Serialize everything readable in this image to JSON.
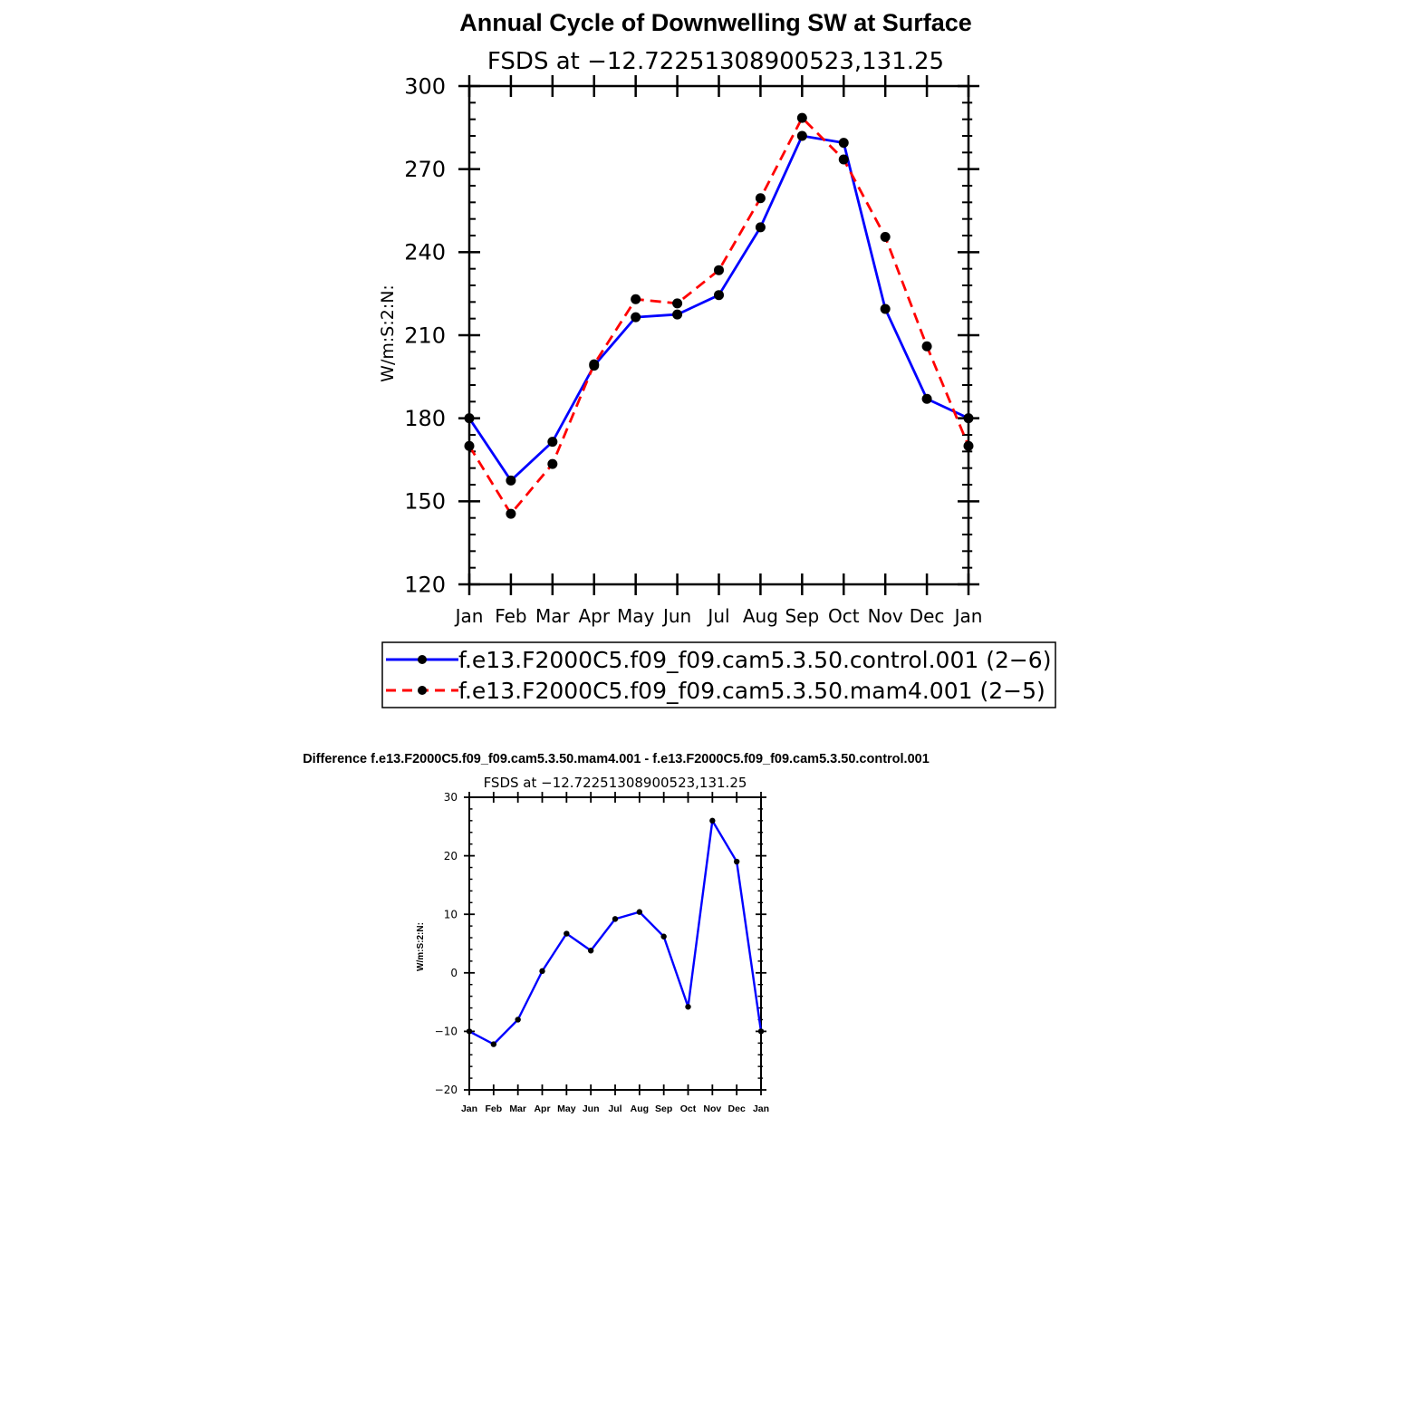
{
  "chart_data": [
    {
      "type": "line",
      "title": "Annual Cycle of Downwelling SW at Surface",
      "subtitle": "FSDS at −12.72251308900523,131.25",
      "ylabel": "W/m:S:2:N:",
      "xlabel": "",
      "ylim": [
        120,
        300
      ],
      "yticks": [
        "120",
        "150",
        "180",
        "210",
        "240",
        "270",
        "300"
      ],
      "ytick_values": [
        120,
        150,
        180,
        210,
        240,
        270,
        300
      ],
      "categories": [
        "Jan",
        "Feb",
        "Mar",
        "Apr",
        "May",
        "Jun",
        "Jul",
        "Aug",
        "Sep",
        "Oct",
        "Nov",
        "Dec",
        "Jan"
      ],
      "grid": false,
      "legend_position": "below",
      "series": [
        {
          "name": "f.e13.F2000C5.f09_f09.cam5.3.50.control.001 (2−6)",
          "color": "#0000ff",
          "style": "solid",
          "values": [
            180,
            157.5,
            171.5,
            199,
            216.5,
            217.5,
            224.5,
            249,
            282,
            279.5,
            219.5,
            187,
            180
          ]
        },
        {
          "name": "f.e13.F2000C5.f09_f09.cam5.3.50.mam4.001 (2−5)",
          "color": "#ff0000",
          "style": "dashed",
          "values": [
            170,
            145.5,
            163.5,
            199.5,
            223,
            221.5,
            233.5,
            259.5,
            288.5,
            273.5,
            245.5,
            206,
            170
          ]
        }
      ]
    },
    {
      "type": "line",
      "title": "Difference f.e13.F2000C5.f09_f09.cam5.3.50.mam4.001 - f.e13.F2000C5.f09_f09.cam5.3.50.control.001",
      "subtitle": "FSDS at −12.72251308900523,131.25",
      "ylabel": "W/m:S:2:N:",
      "xlabel": "",
      "ylim": [
        -20,
        30
      ],
      "yticks": [
        "−20",
        "−10",
        "0",
        "10",
        "20",
        "30"
      ],
      "ytick_values": [
        -20,
        -10,
        0,
        10,
        20,
        30
      ],
      "categories": [
        "Jan",
        "Feb",
        "Mar",
        "Apr",
        "May",
        "Jun",
        "Jul",
        "Aug",
        "Sep",
        "Oct",
        "Nov",
        "Dec",
        "Jan"
      ],
      "grid": false,
      "series": [
        {
          "name": "difference",
          "color": "#0000ff",
          "style": "solid",
          "values": [
            -10,
            -12.2,
            -8,
            0.3,
            6.7,
            3.8,
            9.2,
            10.4,
            6.2,
            -5.8,
            26,
            19,
            -10
          ]
        }
      ]
    }
  ]
}
